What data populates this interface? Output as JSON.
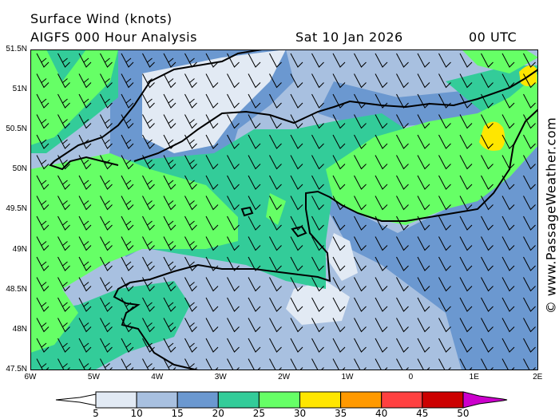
{
  "header": {
    "title": "Surface Wind (knots)",
    "model": "AIGFS 000 Hour Analysis",
    "date": "Sat 10 Jan 2026",
    "time": "00 UTC"
  },
  "watermark": "© www.PassageWeather.com",
  "axes": {
    "lat_labels": [
      "51.5N",
      "51N",
      "50.5N",
      "50N",
      "49.5N",
      "49N",
      "48.5N",
      "48N",
      "47.5N"
    ],
    "lon_labels": [
      "6W",
      "5W",
      "4W",
      "3W",
      "2W",
      "1W",
      "0",
      "1E",
      "2E"
    ]
  },
  "legend": {
    "labels": [
      "5",
      "10",
      "15",
      "20",
      "25",
      "30",
      "35",
      "40",
      "45",
      "50"
    ],
    "colors": [
      "#ffffff",
      "#e2eaf4",
      "#a8c0e0",
      "#6b98d0",
      "#33cc99",
      "#66ff66",
      "#ffe600",
      "#ff9900",
      "#ff4040",
      "#cc0000",
      "#cc00cc"
    ]
  },
  "wind_direction": "north-westerly"
}
